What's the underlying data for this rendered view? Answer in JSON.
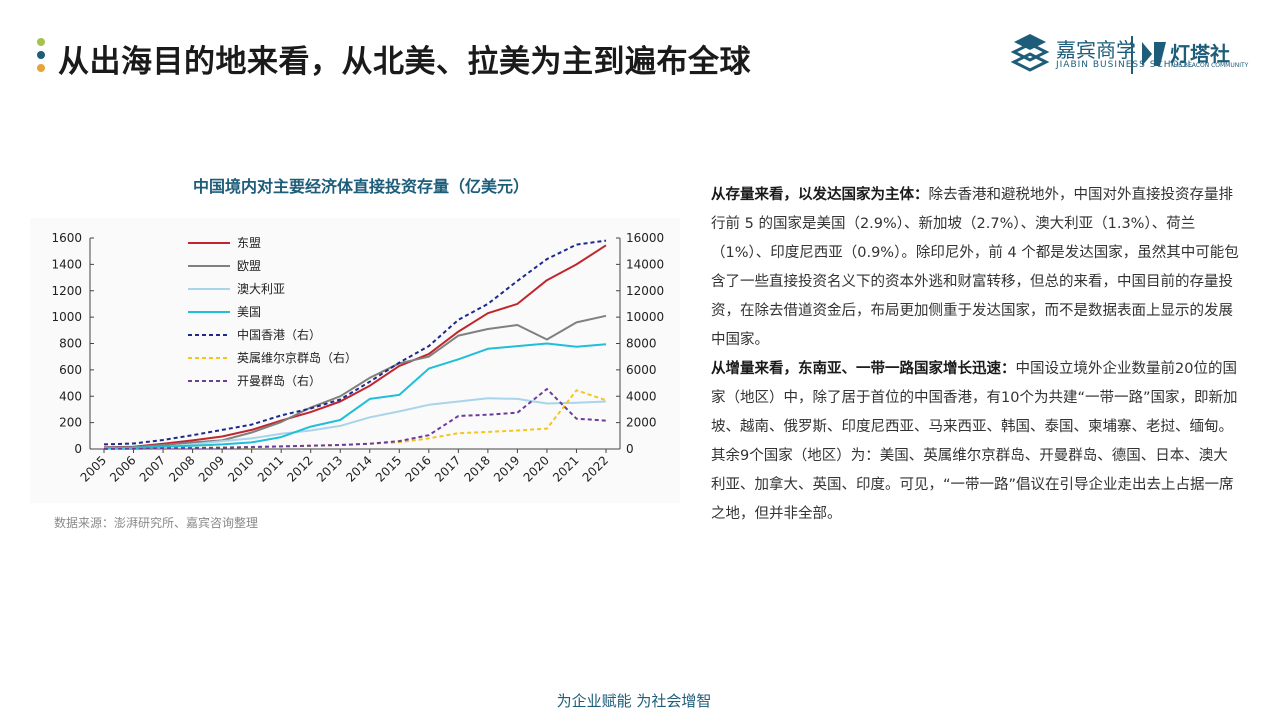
{
  "page": {
    "title": "从出海目的地来看，从北美、拉美为主到遍布全球",
    "dot_colors": [
      "#a5c24b",
      "#1d5d7a",
      "#e8a23a"
    ],
    "footer": "为企业赋能 为社会增智"
  },
  "logo": {
    "brand1": "嘉宾商学",
    "brand1_sub": "JIABIN BUSINESS SCHOOL",
    "brand2": "灯塔社",
    "brand2_sub": "THE BEACON COMMUNITY",
    "color": "#1d5d7a"
  },
  "text": {
    "p1_bold": "从存量来看，以发达国家为主体：",
    "p1_body": "除去香港和避税地外，中国对外直接投资存量排行前 5 的国家是美国（2.9%）、新加坡（2.7%）、澳大利亚（1.3%）、荷兰（1%）、印度尼西亚（0.9%）。除印尼外，前 4 个都是发达国家，虽然其中可能包含了一些直接投资名义下的资本外逃和财富转移，但总的来看，中国目前的存量投资，在除去借道资金后，布局更加侧重于发达国家，而不是数据表面上显示的发展中国家。",
    "p2_bold": "从增量来看，东南亚、一带一路国家增长迅速：",
    "p2_body": "中国设立境外企业数量前20位的国家（地区）中，除了居于首位的中国香港，有10个为共建“一带一路”国家，即新加坡、越南、俄罗斯、印度尼西亚、马来西亚、韩国、泰国、柬埔寨、老挝、缅甸。其余9个国家（地区）为：美国、英属维尔京群岛、开曼群岛、德国、日本、澳大利亚、加拿大、英国、印度。可见，“一带一路”倡议在引导企业走出去上占据一席之地，但并非全部。"
  },
  "source": "数据来源：澎湃研究所、嘉宾咨询整理",
  "chart_data": {
    "type": "line",
    "title": "中国境内对主要经济体直接投资存量（亿美元）",
    "categories": [
      "2005",
      "2006",
      "2007",
      "2008",
      "2009",
      "2010",
      "2011",
      "2012",
      "2013",
      "2014",
      "2015",
      "2016",
      "2017",
      "2018",
      "2019",
      "2020",
      "2021",
      "2022"
    ],
    "ylim": [
      0,
      1600
    ],
    "y2lim": [
      0,
      16000
    ],
    "yticks": [
      0,
      200,
      400,
      600,
      800,
      1000,
      1200,
      1400,
      1600
    ],
    "y2ticks": [
      0,
      2000,
      4000,
      6000,
      8000,
      10000,
      12000,
      14000,
      16000
    ],
    "legend_position": "top-left",
    "grid": false,
    "series": [
      {
        "name": "东盟",
        "axis": "left",
        "color": "#c0272d",
        "dash": false,
        "values": [
          13,
          17,
          40,
          65,
          95,
          145,
          215,
          280,
          360,
          480,
          630,
          720,
          890,
          1030,
          1100,
          1280,
          1400,
          1545
        ]
      },
      {
        "name": "欧盟",
        "axis": "left",
        "color": "#808080",
        "dash": false,
        "values": [
          10,
          13,
          30,
          50,
          65,
          125,
          205,
          315,
          400,
          540,
          650,
          700,
          860,
          910,
          940,
          830,
          960,
          1010
        ]
      },
      {
        "name": "澳大利亚",
        "axis": "left",
        "color": "#a9d4ea",
        "dash": false,
        "values": [
          5,
          8,
          15,
          35,
          60,
          80,
          115,
          140,
          175,
          240,
          285,
          335,
          360,
          385,
          380,
          345,
          350,
          360
        ]
      },
      {
        "name": "美国",
        "axis": "left",
        "color": "#1fbfd8",
        "dash": false,
        "values": [
          8,
          10,
          18,
          25,
          35,
          50,
          90,
          170,
          220,
          380,
          410,
          610,
          680,
          760,
          780,
          800,
          775,
          795
        ]
      },
      {
        "name": "中国香港（右）",
        "axis": "right",
        "color": "#1d2a8c",
        "dash": true,
        "values": [
          350,
          420,
          680,
          1050,
          1450,
          1850,
          2550,
          3080,
          3750,
          5100,
          6550,
          7800,
          9800,
          11000,
          12750,
          14400,
          15500,
          15800
        ]
      },
      {
        "name": "英属维尔京群岛（右）",
        "axis": "right",
        "color": "#f5c518",
        "dash": true,
        "values": [
          30,
          50,
          60,
          80,
          110,
          130,
          200,
          250,
          300,
          400,
          510,
          800,
          1200,
          1300,
          1400,
          1550,
          4450,
          3700
        ]
      },
      {
        "name": "开曼群岛（右）",
        "axis": "right",
        "color": "#6c3c9c",
        "dash": true,
        "values": [
          10,
          20,
          50,
          70,
          100,
          150,
          200,
          250,
          300,
          400,
          600,
          1050,
          2500,
          2600,
          2750,
          4550,
          2300,
          2150
        ]
      }
    ]
  }
}
